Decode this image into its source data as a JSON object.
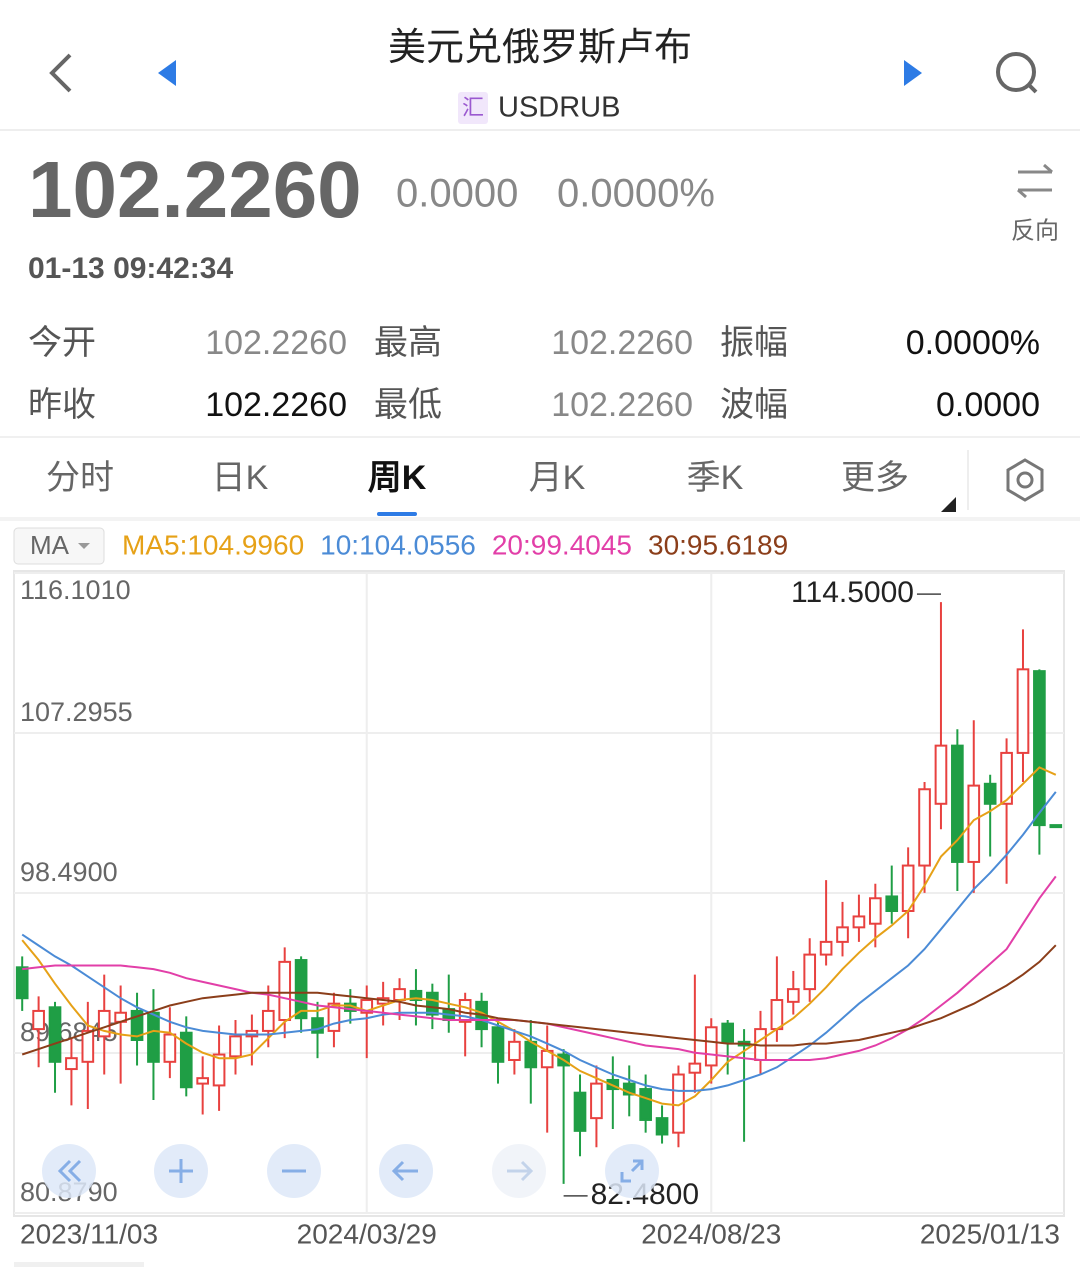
{
  "header": {
    "title": "美元兑俄罗斯卢布",
    "badge": "汇",
    "code": "USDRUB"
  },
  "quote": {
    "price": "102.2260",
    "change": "0.0000",
    "change_pct": "0.0000%",
    "time": "01-13 09:42:34",
    "reverse": "反向"
  },
  "stats": {
    "rows": [
      [
        [
          "今开",
          "102.2260"
        ],
        [
          "最高",
          "102.2260"
        ],
        [
          "振幅",
          "0.0000%"
        ]
      ],
      [
        [
          "昨收",
          "102.2260"
        ],
        [
          "最低",
          "102.2260"
        ],
        [
          "波幅",
          "0.0000"
        ]
      ]
    ]
  },
  "tabs": {
    "items": [
      "分时",
      "日K",
      "周K",
      "月K",
      "季K",
      "更多"
    ],
    "active": 2
  },
  "indicator": "MA",
  "chart_data": {
    "type": "candlestick",
    "categories": [
      "2023/11/03",
      null,
      null,
      null,
      null,
      null,
      null,
      null,
      null,
      null,
      null,
      null,
      null,
      null,
      null,
      null,
      null,
      null,
      null,
      null,
      null,
      "2024/03/29",
      null,
      null,
      null,
      null,
      null,
      null,
      null,
      null,
      null,
      null,
      null,
      null,
      null,
      null,
      null,
      null,
      null,
      null,
      null,
      null,
      "2024/08/23",
      null,
      null,
      null,
      null,
      null,
      null,
      null,
      null,
      null,
      null,
      null,
      null,
      null,
      null,
      null,
      null,
      null,
      null,
      null,
      null,
      "2025/01/13"
    ],
    "open": [
      94.4,
      91.0,
      92.2,
      88.8,
      89.2,
      90.6,
      91.4,
      92.0,
      91.9,
      89.2,
      90.8,
      88.0,
      87.9,
      89.5,
      90.6,
      90.9,
      91.5,
      94.8,
      91.6,
      90.9,
      92.4,
      91.9,
      92.4,
      92.6,
      93.1,
      93.0,
      92.1,
      91.4,
      92.5,
      91.1,
      89.3,
      90.3,
      88.9,
      89.6,
      87.5,
      86.1,
      88.2,
      88.0,
      87.7,
      86.1,
      85.3,
      88.6,
      89.0,
      91.3,
      90.3,
      89.3,
      91.0,
      92.5,
      93.2,
      95.1,
      95.8,
      96.6,
      96.8,
      98.3,
      97.5,
      100.0,
      103.4,
      106.6,
      100.2,
      104.5,
      103.4,
      106.2,
      110.7,
      102.226
    ],
    "high": [
      95.0,
      92.8,
      92.5,
      90.5,
      92.5,
      94.0,
      93.4,
      93.0,
      93.2,
      92.2,
      91.7,
      89.5,
      91.2,
      91.5,
      91.8,
      93.4,
      95.5,
      95.0,
      92.5,
      93.0,
      93.2,
      93.4,
      93.6,
      93.8,
      94.3,
      93.5,
      94.0,
      93.0,
      93.0,
      91.5,
      91.0,
      91.5,
      91.2,
      89.9,
      88.5,
      89.0,
      89.5,
      89.0,
      88.5,
      86.8,
      89.0,
      94.0,
      91.6,
      91.5,
      91.0,
      92.0,
      95.0,
      94.2,
      96.0,
      99.2,
      98.0,
      98.4,
      99.0,
      100.0,
      101.0,
      104.6,
      114.5,
      107.5,
      108.0,
      105.0,
      107.0,
      113.0,
      110.8,
      102.226
    ],
    "low": [
      92.0,
      88.9,
      87.5,
      86.8,
      86.6,
      88.5,
      88.0,
      89.0,
      87.1,
      88.3,
      87.3,
      86.3,
      86.5,
      88.5,
      89.0,
      90.0,
      90.5,
      90.8,
      89.4,
      90.0,
      91.3,
      89.4,
      91.2,
      91.5,
      91.2,
      91.0,
      90.8,
      89.5,
      90.0,
      88.0,
      88.5,
      86.9,
      85.3,
      82.48,
      84.0,
      84.5,
      85.5,
      86.2,
      85.3,
      84.7,
      84.5,
      87.5,
      88.0,
      88.5,
      84.8,
      88.5,
      90.3,
      91.8,
      92.5,
      94.5,
      95.0,
      95.8,
      95.5,
      96.8,
      96.0,
      98.5,
      102.0,
      98.6,
      98.5,
      100.5,
      99.0,
      104.6,
      100.6,
      102.226
    ],
    "close": [
      92.7,
      92.0,
      89.2,
      89.4,
      90.9,
      92.0,
      91.9,
      90.4,
      89.2,
      90.7,
      87.8,
      88.3,
      89.6,
      90.6,
      90.9,
      92.0,
      94.7,
      91.6,
      90.8,
      92.4,
      92.0,
      92.6,
      92.7,
      93.2,
      92.6,
      91.8,
      91.5,
      92.6,
      91.0,
      89.2,
      90.3,
      88.9,
      89.8,
      89.0,
      85.4,
      88.0,
      87.7,
      87.4,
      86.0,
      85.2,
      88.5,
      89.1,
      91.1,
      90.3,
      90.1,
      91.0,
      92.6,
      93.2,
      95.1,
      95.8,
      96.6,
      97.2,
      98.2,
      97.5,
      100.0,
      104.2,
      106.6,
      100.2,
      104.4,
      103.4,
      106.2,
      110.8,
      102.226,
      102.226
    ],
    "up_color": "#e8413f",
    "down_color": "#1f9e45",
    "series": [
      {
        "name": "MA5:104.9960",
        "color": "#e6a117",
        "values": [
          95.9,
          94.8,
          93.5,
          92.3,
          91.2,
          90.9,
          90.7,
          90.6,
          90.9,
          90.8,
          90.2,
          89.7,
          89.4,
          89.4,
          89.6,
          90.5,
          91.4,
          92.0,
          92.0,
          92.3,
          92.3,
          92.0,
          92.3,
          92.6,
          92.7,
          92.6,
          92.4,
          92.2,
          91.9,
          91.4,
          90.9,
          90.3,
          89.8,
          89.3,
          88.7,
          88.3,
          87.9,
          87.5,
          87.2,
          86.9,
          86.8,
          87.3,
          88.2,
          89.2,
          89.8,
          90.4,
          91.0,
          91.6,
          92.4,
          93.3,
          94.3,
          95.2,
          96.0,
          96.7,
          97.5,
          98.9,
          100.5,
          101.4,
          102.5,
          103.0,
          103.6,
          104.5,
          105.4,
          104.996
        ]
      },
      {
        "name": "10:104.0556",
        "color": "#4b8bd6",
        "values": [
          96.2,
          95.6,
          95.0,
          94.5,
          93.9,
          93.3,
          92.7,
          92.2,
          91.8,
          91.4,
          91.1,
          90.9,
          90.8,
          90.7,
          90.7,
          90.7,
          90.8,
          90.9,
          91.0,
          91.3,
          91.5,
          91.6,
          91.8,
          91.9,
          91.9,
          91.9,
          91.8,
          91.7,
          91.5,
          91.2,
          90.9,
          90.6,
          90.2,
          89.8,
          89.3,
          88.9,
          88.5,
          88.2,
          87.9,
          87.7,
          87.6,
          87.6,
          87.7,
          87.9,
          88.2,
          88.5,
          88.9,
          89.5,
          90.1,
          90.8,
          91.6,
          92.4,
          93.1,
          93.8,
          94.5,
          95.4,
          96.5,
          97.6,
          98.7,
          99.6,
          100.6,
          101.7,
          102.9,
          104.0556
        ]
      },
      {
        "name": "20:99.4045",
        "color": "#e23fa8",
        "values": [
          94.3,
          94.4,
          94.5,
          94.5,
          94.5,
          94.5,
          94.5,
          94.4,
          94.3,
          94.1,
          93.8,
          93.6,
          93.4,
          93.2,
          93.0,
          92.9,
          92.7,
          92.5,
          92.3,
          92.2,
          92.1,
          92.0,
          91.9,
          91.8,
          91.7,
          91.6,
          91.5,
          91.5,
          91.5,
          91.5,
          91.5,
          91.4,
          91.3,
          91.1,
          90.9,
          90.7,
          90.5,
          90.3,
          90.1,
          90.0,
          89.9,
          89.7,
          89.6,
          89.5,
          89.4,
          89.3,
          89.3,
          89.3,
          89.3,
          89.4,
          89.6,
          89.8,
          90.1,
          90.5,
          91.0,
          91.6,
          92.3,
          93.0,
          93.8,
          94.6,
          95.4,
          96.8,
          98.2,
          99.4045
        ]
      },
      {
        "name": "30:95.6189",
        "color": "#8b3e1a",
        "values": [
          89.6,
          89.9,
          90.2,
          90.5,
          90.8,
          91.1,
          91.4,
          91.7,
          92.0,
          92.3,
          92.5,
          92.7,
          92.8,
          92.9,
          93.0,
          93.0,
          93.0,
          93.0,
          93.0,
          92.9,
          92.8,
          92.7,
          92.6,
          92.5,
          92.3,
          92.2,
          92.1,
          91.9,
          91.8,
          91.6,
          91.5,
          91.4,
          91.3,
          91.2,
          91.1,
          91.0,
          90.9,
          90.8,
          90.7,
          90.6,
          90.5,
          90.4,
          90.3,
          90.2,
          90.2,
          90.1,
          90.1,
          90.1,
          90.2,
          90.2,
          90.3,
          90.4,
          90.6,
          90.8,
          91.0,
          91.3,
          91.6,
          92.0,
          92.4,
          92.9,
          93.4,
          94.0,
          94.7,
          95.6189
        ]
      }
    ],
    "ylim": [
      80.879,
      116.101
    ],
    "yticks": [
      {
        "value": 116.101,
        "label": "116.1010"
      },
      107.2955,
      {
        "value": 98.49,
        "label": "98.4900"
      },
      89.6845,
      {
        "value": 80.879,
        "label": "80.8790"
      }
    ],
    "grid": true,
    "annotations": {
      "max_label": "114.5000",
      "min_label": "82.4800"
    }
  }
}
